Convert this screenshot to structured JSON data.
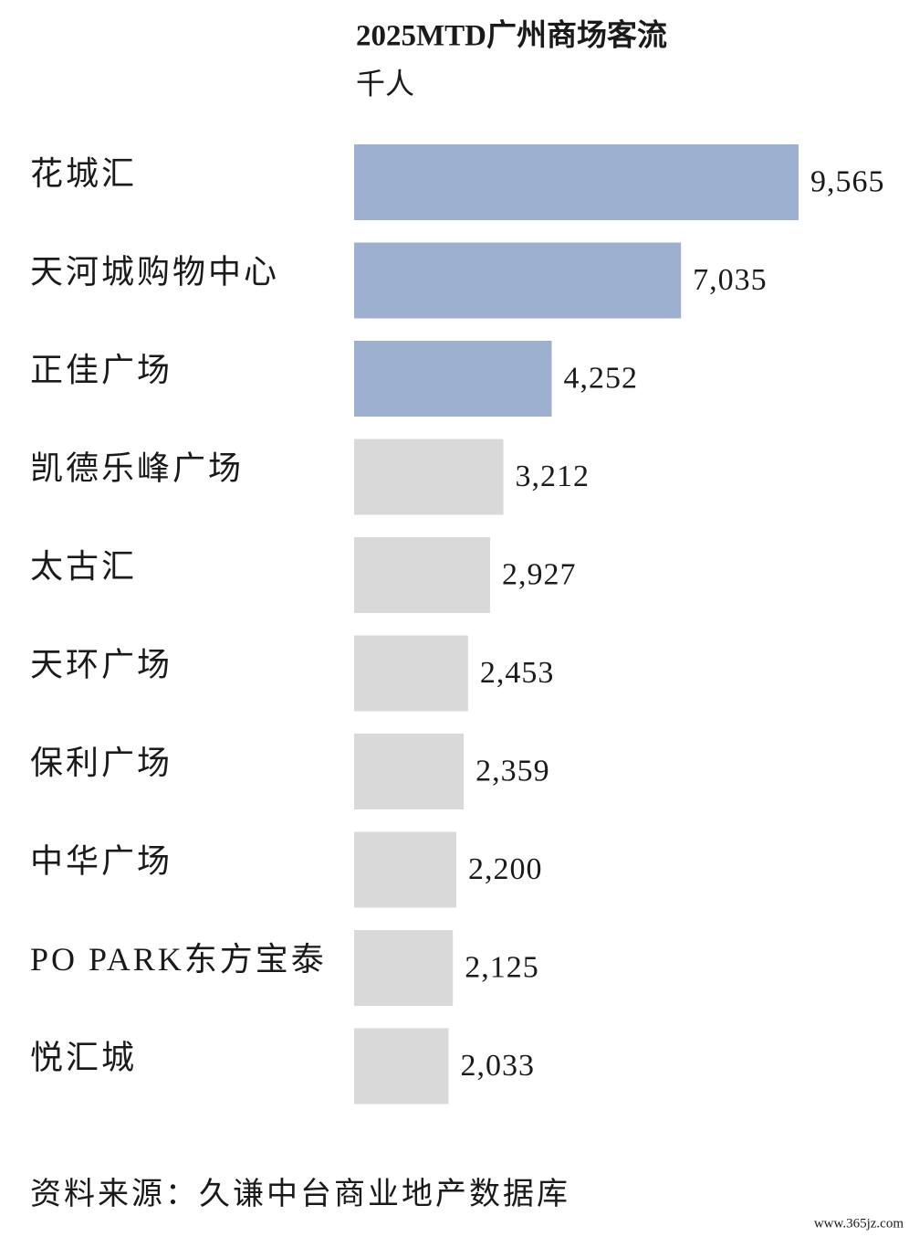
{
  "chart_data": {
    "type": "bar",
    "orientation": "horizontal",
    "title": "2025MTD广州商场客流",
    "subtitle": "千人",
    "categories": [
      "花城汇",
      "天河城购物中心",
      "正佳广场",
      "凯德乐峰广场",
      "太古汇",
      "天环广场",
      "保利广场",
      "中华广场",
      "PO PARK东方宝泰",
      "悦汇城"
    ],
    "values": [
      9565,
      7035,
      4252,
      3212,
      2927,
      2453,
      2359,
      2200,
      2125,
      2033
    ],
    "value_labels": [
      "9,565",
      "7,035",
      "4,252",
      "3,212",
      "2,927",
      "2,453",
      "2,359",
      "2,200",
      "2,125",
      "2,033"
    ],
    "colors": [
      "#9eb0cf",
      "#9eb0cf",
      "#9eb0cf",
      "#d9d9d9",
      "#d9d9d9",
      "#d9d9d9",
      "#d9d9d9",
      "#d9d9d9",
      "#d9d9d9",
      "#d9d9d9"
    ],
    "source": "资料来源：久谦中台商业地产数据库",
    "watermark": "www.365jz.com"
  }
}
